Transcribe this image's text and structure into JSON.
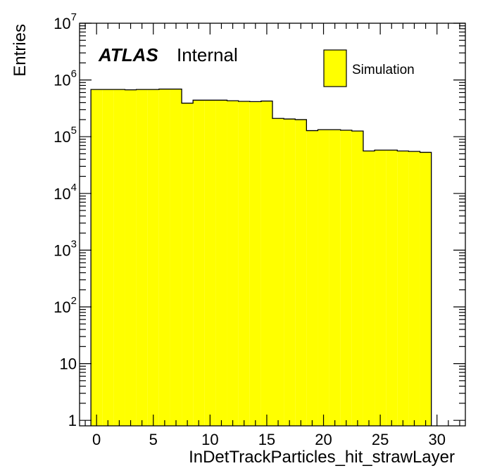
{
  "chart_data": {
    "type": "bar",
    "xlabel": "InDetTrackParticles_hit_strawLayer",
    "ylabel": "Entries",
    "label_bold": "ATLAS",
    "label_status": "Internal",
    "legend": [
      "Simulation"
    ],
    "legend_position": "top-right",
    "fill_color": "#ffff00",
    "line_color": "#000000",
    "x_scale": "linear",
    "y_scale": "log",
    "xlim": [
      -1.5,
      32.5
    ],
    "ylim": [
      0.8,
      10000000
    ],
    "x_ticks": [
      "0",
      "5",
      "10",
      "15",
      "20",
      "25",
      "30"
    ],
    "y_ticks": [
      {
        "base": "1",
        "exp": ""
      },
      {
        "base": "10",
        "exp": ""
      },
      {
        "base": "10",
        "exp": "2"
      },
      {
        "base": "10",
        "exp": "3"
      },
      {
        "base": "10",
        "exp": "4"
      },
      {
        "base": "10",
        "exp": "5"
      },
      {
        "base": "10",
        "exp": "6"
      },
      {
        "base": "10",
        "exp": "7"
      }
    ],
    "bins": [
      {
        "low": -0.5,
        "high": 0.5,
        "value": 680000
      },
      {
        "low": 0.5,
        "high": 1.5,
        "value": 680000
      },
      {
        "low": 1.5,
        "high": 2.5,
        "value": 680000
      },
      {
        "low": 2.5,
        "high": 3.5,
        "value": 670000
      },
      {
        "low": 3.5,
        "high": 4.5,
        "value": 680000
      },
      {
        "low": 4.5,
        "high": 5.5,
        "value": 680000
      },
      {
        "low": 5.5,
        "high": 6.5,
        "value": 690000
      },
      {
        "low": 6.5,
        "high": 7.5,
        "value": 690000
      },
      {
        "low": 7.5,
        "high": 8.5,
        "value": 390000
      },
      {
        "low": 8.5,
        "high": 9.5,
        "value": 440000
      },
      {
        "low": 9.5,
        "high": 10.5,
        "value": 440000
      },
      {
        "low": 10.5,
        "high": 11.5,
        "value": 440000
      },
      {
        "low": 11.5,
        "high": 12.5,
        "value": 430000
      },
      {
        "low": 12.5,
        "high": 13.5,
        "value": 420000
      },
      {
        "low": 13.5,
        "high": 14.5,
        "value": 415000
      },
      {
        "low": 14.5,
        "high": 15.5,
        "value": 425000
      },
      {
        "low": 15.5,
        "high": 16.5,
        "value": 210000
      },
      {
        "low": 16.5,
        "high": 17.5,
        "value": 205000
      },
      {
        "low": 17.5,
        "high": 18.5,
        "value": 200000
      },
      {
        "low": 18.5,
        "high": 19.5,
        "value": 128000
      },
      {
        "low": 19.5,
        "high": 20.5,
        "value": 133000
      },
      {
        "low": 20.5,
        "high": 21.5,
        "value": 133000
      },
      {
        "low": 21.5,
        "high": 22.5,
        "value": 130000
      },
      {
        "low": 22.5,
        "high": 23.5,
        "value": 126000
      },
      {
        "low": 23.5,
        "high": 24.5,
        "value": 56000
      },
      {
        "low": 24.5,
        "high": 25.5,
        "value": 58000
      },
      {
        "low": 25.5,
        "high": 26.5,
        "value": 58000
      },
      {
        "low": 26.5,
        "high": 27.5,
        "value": 56000
      },
      {
        "low": 27.5,
        "high": 28.5,
        "value": 55000
      },
      {
        "low": 28.5,
        "high": 29.5,
        "value": 53000
      }
    ]
  }
}
